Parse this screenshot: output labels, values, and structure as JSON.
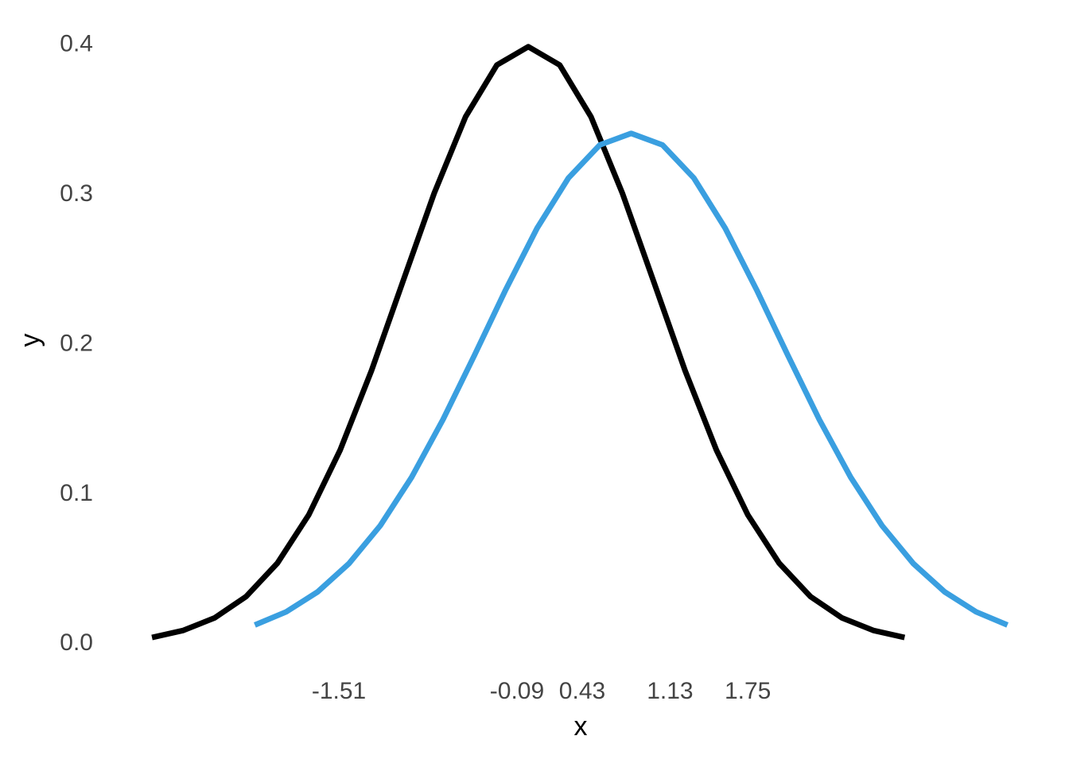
{
  "chart_data": {
    "type": "line",
    "x_label": "x",
    "y_label": "y",
    "xlim": [
      -3.4,
      4.0
    ],
    "ylim": [
      -0.02,
      0.42
    ],
    "xticks": [
      -1.51,
      -0.09,
      0.43,
      1.13,
      1.75
    ],
    "yticks": [
      {
        "value": 0,
        "label": "0.0"
      },
      0.1,
      0.2,
      0.3,
      0.4
    ],
    "grid": false,
    "series": [
      {
        "color": "#000000",
        "x": [
          -3,
          -2.75,
          -2.5,
          -2.25,
          -2,
          -1.75,
          -1.5,
          -1.25,
          -1,
          -0.75,
          -0.5,
          -0.25,
          0,
          0.25,
          0.5,
          0.75,
          1,
          1.25,
          1.5,
          1.75,
          2,
          2.25,
          2.5,
          2.75,
          3
        ],
        "values": [
          0.0044,
          0.0091,
          0.0175,
          0.0317,
          0.054,
          0.0863,
          0.1295,
          0.1826,
          0.242,
          0.3011,
          0.3521,
          0.3867,
          0.3989,
          0.3867,
          0.3521,
          0.3011,
          0.242,
          0.1826,
          0.1295,
          0.0863,
          0.054,
          0.0317,
          0.0175,
          0.0091,
          0.0044
        ]
      },
      {
        "color": "#3a9fe0",
        "x": [
          -2.18,
          -1.93,
          -1.68,
          -1.43,
          -1.18,
          -0.93,
          -0.68,
          -0.43,
          -0.18,
          0.07,
          0.32,
          0.57,
          0.82,
          1.07,
          1.32,
          1.57,
          1.82,
          2.07,
          2.32,
          2.57,
          2.82,
          3.07,
          3.32,
          3.57,
          3.82
        ],
        "values": [
          0.0127,
          0.0215,
          0.0348,
          0.0537,
          0.0791,
          0.1114,
          0.1499,
          0.1927,
          0.2366,
          0.2777,
          0.3112,
          0.3333,
          0.341,
          0.3333,
          0.3112,
          0.2777,
          0.2366,
          0.1927,
          0.1499,
          0.1114,
          0.0791,
          0.0537,
          0.0348,
          0.0215,
          0.0127
        ]
      }
    ]
  }
}
